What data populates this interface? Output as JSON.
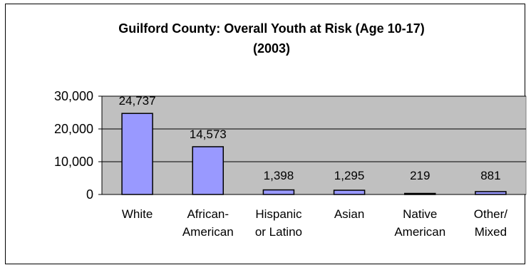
{
  "chart_data": {
    "type": "bar",
    "title_lines": [
      "Guilford County:  Overall Youth at Risk (Age 10-17)",
      "(2003)"
    ],
    "categories": [
      [
        "White"
      ],
      [
        "African-",
        "American"
      ],
      [
        "Hispanic",
        "or Latino"
      ],
      [
        "Asian"
      ],
      [
        "Native",
        "American"
      ],
      [
        "Other/",
        "Mixed"
      ]
    ],
    "values": [
      24737,
      14573,
      1398,
      1295,
      219,
      881
    ],
    "value_labels": [
      "24,737",
      "14,573",
      "1,398",
      "1,295",
      "219",
      "881"
    ],
    "ylim": [
      0,
      30000
    ],
    "yticks": [
      0,
      10000,
      20000,
      30000
    ],
    "ytick_labels": [
      "0",
      "10,000",
      "20,000",
      "30,000"
    ],
    "grid": true,
    "legend": "none",
    "colors": {
      "bar_fill": "#9999ff",
      "bar_stroke": "#000000",
      "plot_bg": "#c0c0c0",
      "grid": "#000000"
    }
  }
}
